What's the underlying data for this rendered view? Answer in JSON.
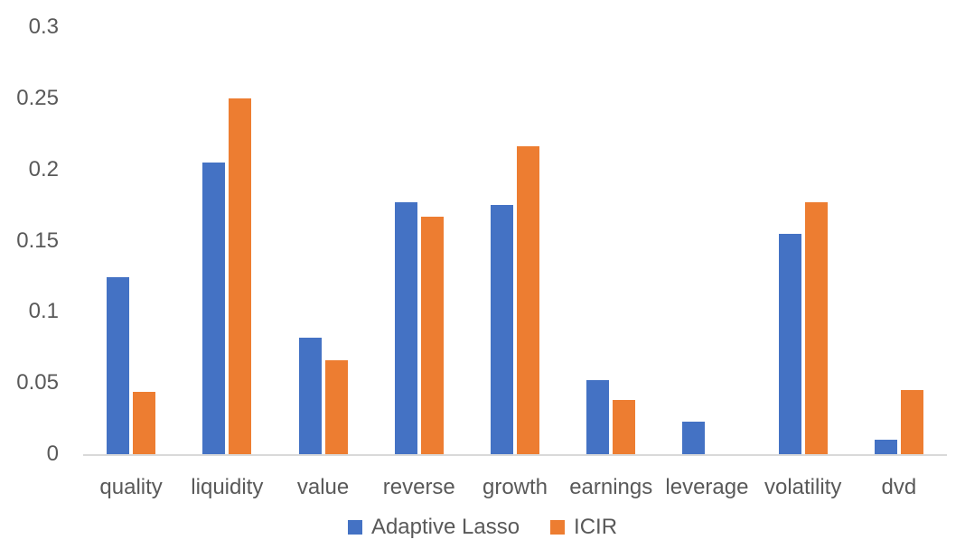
{
  "chart_data": {
    "type": "bar",
    "title": "",
    "xlabel": "",
    "ylabel": "",
    "categories": [
      "quality",
      "liquidity",
      "value",
      "reverse",
      "growth",
      "earnings",
      "leverage",
      "volatility",
      "dvd"
    ],
    "series": [
      {
        "name": "Adaptive Lasso",
        "color": "#4472C4",
        "values": [
          0.124,
          0.205,
          0.082,
          0.177,
          0.175,
          0.052,
          0.023,
          0.155,
          0.01
        ]
      },
      {
        "name": "ICIR",
        "color": "#ED7D31",
        "values": [
          0.044,
          0.25,
          0.066,
          0.167,
          0.216,
          0.038,
          0,
          0.177,
          0.045
        ]
      }
    ],
    "ylim": [
      0,
      0.3
    ],
    "yticks": [
      0,
      0.05,
      0.1,
      0.15,
      0.2,
      0.25,
      0.3
    ],
    "ytick_labels": [
      "0",
      "0.05",
      "0.1",
      "0.15",
      "0.2",
      "0.25",
      "0.3"
    ],
    "grid": false,
    "legend_position": "bottom",
    "colors": {
      "text": "#595959",
      "axis_line": "#D9D9D9",
      "background": "#FFFFFF"
    }
  }
}
